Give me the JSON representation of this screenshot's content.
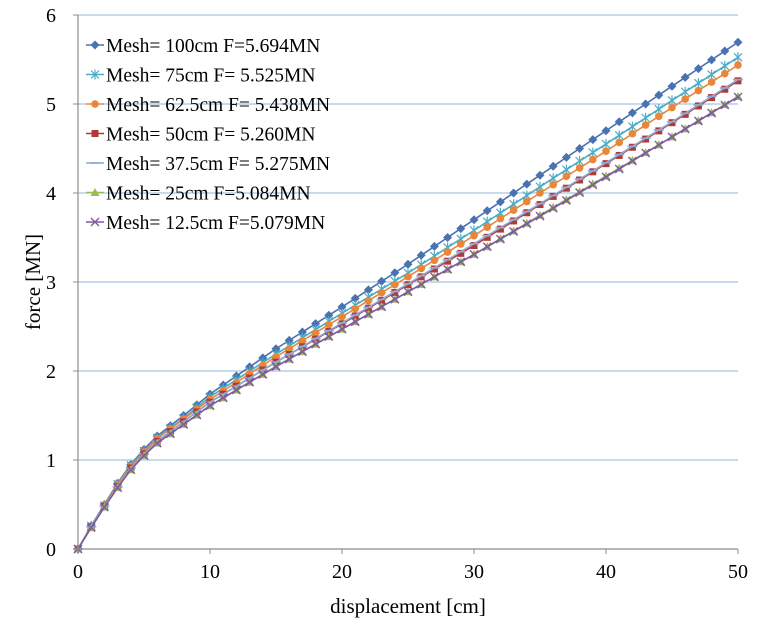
{
  "chart_data": {
    "type": "line",
    "xlabel": "displacement [cm]",
    "ylabel": "force [MN]",
    "xlim": [
      0,
      50
    ],
    "ylim": [
      0,
      6
    ],
    "x_ticks": [
      "0",
      "10",
      "20",
      "30",
      "40",
      "50"
    ],
    "y_ticks": [
      "0",
      "1",
      "2",
      "3",
      "4",
      "5",
      "6"
    ],
    "grid": "horizontal",
    "legend_position": "top-left",
    "x_step": 1,
    "series": [
      {
        "name": "Mesh= 100cm  F=5.694MN",
        "color": "#4a72b0",
        "marker": "diamond",
        "points": [
          [
            0,
            0
          ],
          [
            0.5,
            0.13
          ],
          [
            1,
            0.26
          ],
          [
            2,
            0.5
          ],
          [
            3,
            0.74
          ],
          [
            4,
            0.95
          ],
          [
            5,
            1.12
          ],
          [
            6,
            1.27
          ],
          [
            8,
            1.5
          ],
          [
            10,
            1.74
          ],
          [
            15,
            2.25
          ],
          [
            20,
            2.72
          ],
          [
            25,
            3.2
          ],
          [
            30,
            3.7
          ],
          [
            35,
            4.2
          ],
          [
            40,
            4.7
          ],
          [
            45,
            5.2
          ],
          [
            50,
            5.694
          ]
        ]
      },
      {
        "name": "Mesh= 75cm F= 5.525MN",
        "color": "#4bacc6",
        "marker": "star",
        "points": [
          [
            0,
            0
          ],
          [
            0.5,
            0.13
          ],
          [
            1,
            0.26
          ],
          [
            2,
            0.49
          ],
          [
            3,
            0.73
          ],
          [
            4,
            0.94
          ],
          [
            5,
            1.1
          ],
          [
            6,
            1.25
          ],
          [
            8,
            1.47
          ],
          [
            10,
            1.71
          ],
          [
            15,
            2.19
          ],
          [
            20,
            2.65
          ],
          [
            25,
            3.1
          ],
          [
            30,
            3.58
          ],
          [
            35,
            4.07
          ],
          [
            40,
            4.55
          ],
          [
            45,
            5.04
          ],
          [
            50,
            5.525
          ]
        ]
      },
      {
        "name": "Mesh= 62.5cm F= 5.438MN",
        "color": "#e8873a",
        "marker": "circle",
        "points": [
          [
            0,
            0
          ],
          [
            0.5,
            0.13
          ],
          [
            1,
            0.25
          ],
          [
            2,
            0.49
          ],
          [
            3,
            0.72
          ],
          [
            4,
            0.93
          ],
          [
            5,
            1.09
          ],
          [
            6,
            1.24
          ],
          [
            8,
            1.46
          ],
          [
            10,
            1.68
          ],
          [
            15,
            2.16
          ],
          [
            20,
            2.61
          ],
          [
            25,
            3.06
          ],
          [
            30,
            3.52
          ],
          [
            35,
            4.0
          ],
          [
            40,
            4.47
          ],
          [
            45,
            4.96
          ],
          [
            50,
            5.438
          ]
        ]
      },
      {
        "name": "Mesh= 50cm F= 5.260MN",
        "color": "#b03a36",
        "marker": "square",
        "points": [
          [
            0,
            0
          ],
          [
            0.5,
            0.12
          ],
          [
            1,
            0.25
          ],
          [
            2,
            0.48
          ],
          [
            3,
            0.7
          ],
          [
            4,
            0.91
          ],
          [
            5,
            1.07
          ],
          [
            6,
            1.21
          ],
          [
            8,
            1.43
          ],
          [
            10,
            1.65
          ],
          [
            15,
            2.1
          ],
          [
            20,
            2.53
          ],
          [
            25,
            2.97
          ],
          [
            30,
            3.41
          ],
          [
            35,
            3.87
          ],
          [
            40,
            4.33
          ],
          [
            45,
            4.79
          ],
          [
            50,
            5.26
          ]
        ]
      },
      {
        "name": "Mesh= 37.5cm F= 5.275MN",
        "color": "#8fa9d6",
        "marker": "dash",
        "points": [
          [
            0,
            0
          ],
          [
            0.5,
            0.12
          ],
          [
            1,
            0.25
          ],
          [
            2,
            0.48
          ],
          [
            3,
            0.7
          ],
          [
            4,
            0.91
          ],
          [
            5,
            1.07
          ],
          [
            6,
            1.21
          ],
          [
            8,
            1.43
          ],
          [
            10,
            1.65
          ],
          [
            15,
            2.1
          ],
          [
            20,
            2.54
          ],
          [
            25,
            2.98
          ],
          [
            30,
            3.43
          ],
          [
            35,
            3.88
          ],
          [
            40,
            4.34
          ],
          [
            45,
            4.8
          ],
          [
            50,
            5.275
          ]
        ]
      },
      {
        "name": "Mesh= 25cm  F=5.084MN",
        "color": "#9bbb59",
        "marker": "triangle",
        "points": [
          [
            0,
            0
          ],
          [
            0.5,
            0.12
          ],
          [
            1,
            0.24
          ],
          [
            2,
            0.47
          ],
          [
            3,
            0.69
          ],
          [
            4,
            0.89
          ],
          [
            5,
            1.05
          ],
          [
            6,
            1.19
          ],
          [
            8,
            1.4
          ],
          [
            10,
            1.61
          ],
          [
            15,
            2.05
          ],
          [
            20,
            2.47
          ],
          [
            25,
            2.89
          ],
          [
            30,
            3.31
          ],
          [
            35,
            3.75
          ],
          [
            40,
            4.19
          ],
          [
            45,
            4.63
          ],
          [
            50,
            5.084
          ]
        ]
      },
      {
        "name": "Mesh= 12.5cm  F=5.079MN",
        "color": "#7e5aa0",
        "marker": "x",
        "points": [
          [
            0,
            0
          ],
          [
            0.5,
            0.12
          ],
          [
            1,
            0.24
          ],
          [
            2,
            0.47
          ],
          [
            3,
            0.69
          ],
          [
            4,
            0.89
          ],
          [
            5,
            1.05
          ],
          [
            6,
            1.19
          ],
          [
            8,
            1.4
          ],
          [
            10,
            1.61
          ],
          [
            15,
            2.05
          ],
          [
            20,
            2.47
          ],
          [
            25,
            2.89
          ],
          [
            30,
            3.31
          ],
          [
            35,
            3.74
          ],
          [
            40,
            4.18
          ],
          [
            45,
            4.63
          ],
          [
            50,
            5.079
          ]
        ]
      }
    ]
  }
}
